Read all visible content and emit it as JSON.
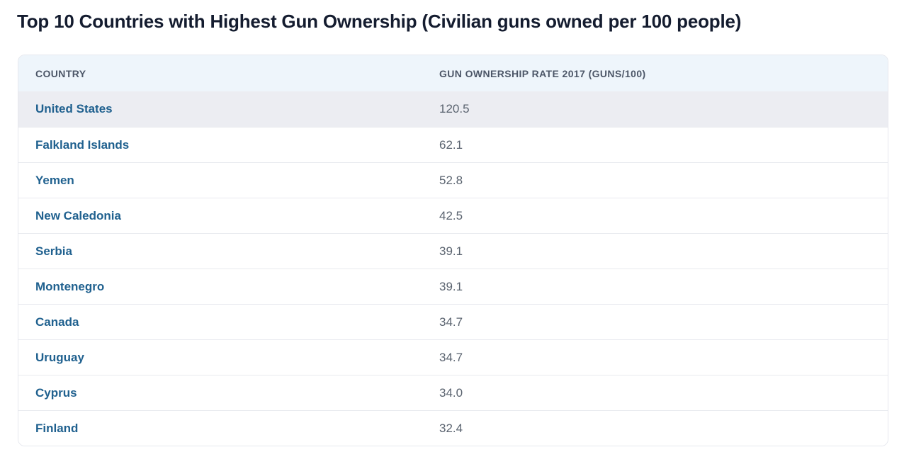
{
  "page": {
    "title": "Top 10 Countries with Highest Gun Ownership (Civilian guns owned per 100 people)"
  },
  "chart_data": {
    "type": "table",
    "title": "Top 10 Countries with Highest Gun Ownership (Civilian guns owned per 100 people)",
    "columns": [
      "COUNTRY",
      "GUN OWNERSHIP RATE 2017 (GUNS/100)"
    ],
    "rows": [
      {
        "country": "United States",
        "rate": 120.5,
        "display": "120.5",
        "highlight": true
      },
      {
        "country": "Falkland Islands",
        "rate": 62.1,
        "display": "62.1",
        "highlight": false
      },
      {
        "country": "Yemen",
        "rate": 52.8,
        "display": "52.8",
        "highlight": false
      },
      {
        "country": "New Caledonia",
        "rate": 42.5,
        "display": "42.5",
        "highlight": false
      },
      {
        "country": "Serbia",
        "rate": 39.1,
        "display": "39.1",
        "highlight": false
      },
      {
        "country": "Montenegro",
        "rate": 39.1,
        "display": "39.1",
        "highlight": false
      },
      {
        "country": "Canada",
        "rate": 34.7,
        "display": "34.7",
        "highlight": false
      },
      {
        "country": "Uruguay",
        "rate": 34.7,
        "display": "34.7",
        "highlight": false
      },
      {
        "country": "Cyprus",
        "rate": 34.0,
        "display": "34.0",
        "highlight": false
      },
      {
        "country": "Finland",
        "rate": 32.4,
        "display": "32.4",
        "highlight": false
      }
    ]
  },
  "colors": {
    "title_color": "#141c2f",
    "header_bg": "#eef5fb",
    "header_text": "#4c5667",
    "row_highlight_bg": "#ecedf2",
    "row_divider": "#e8eaef",
    "table_border": "#e6e8ee",
    "country_link": "#20618f",
    "value_text": "#5a636f",
    "page_bg": "#ffffff"
  }
}
